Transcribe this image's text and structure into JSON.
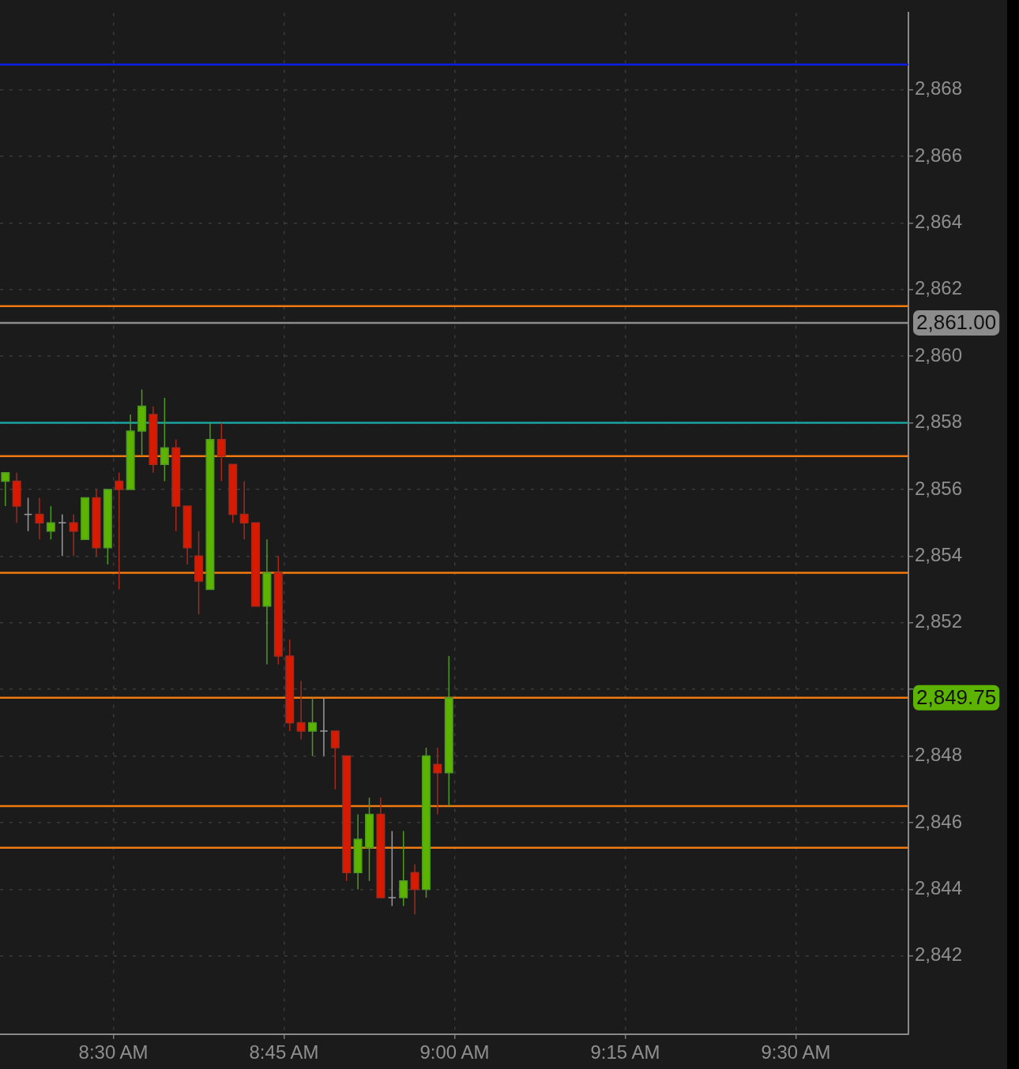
{
  "chart_data": {
    "type": "candlestick",
    "x": [
      8.34167,
      8.35833,
      8.375,
      8.39167,
      8.40833,
      8.425,
      8.44167,
      8.45833,
      8.475,
      8.49167,
      8.50833,
      8.525,
      8.54167,
      8.55833,
      8.575,
      8.59167,
      8.60833,
      8.625,
      8.64167,
      8.65833,
      8.675,
      8.69167,
      8.70833,
      8.725,
      8.74167,
      8.75833,
      8.775,
      8.79167,
      8.80833,
      8.825,
      8.84167,
      8.85833,
      8.875,
      8.89167,
      8.90833,
      8.925,
      8.94167,
      8.95833,
      8.975,
      8.99167
    ],
    "ohlc": [
      [
        2856.25,
        2856.5,
        2855.5,
        2856.5
      ],
      [
        2856.25,
        2856.5,
        2855,
        2855.5
      ],
      [
        2855.25,
        2855.75,
        2854.75,
        2855.25
      ],
      [
        2855.25,
        2855.75,
        2854.5,
        2855
      ],
      [
        2854.75,
        2855.5,
        2854.5,
        2855
      ],
      [
        2855,
        2855.25,
        2854,
        2855
      ],
      [
        2855,
        2855.25,
        2854,
        2854.75
      ],
      [
        2854.5,
        2855.75,
        2854.5,
        2855.75
      ],
      [
        2855.75,
        2856,
        2854,
        2854.25
      ],
      [
        2854.25,
        2856,
        2853.75,
        2856
      ],
      [
        2856.25,
        2856.5,
        2853,
        2856
      ],
      [
        2856,
        2858.25,
        2856,
        2857.75
      ],
      [
        2857.75,
        2859,
        2857,
        2858.5
      ],
      [
        2858.25,
        2858.5,
        2856.5,
        2856.75
      ],
      [
        2856.75,
        2858.75,
        2856.25,
        2857.25
      ],
      [
        2857.25,
        2857.5,
        2854.75,
        2855.5
      ],
      [
        2855.5,
        2855.5,
        2853.75,
        2854.25
      ],
      [
        2854,
        2854.75,
        2852.25,
        2853.25
      ],
      [
        2853,
        2858,
        2853,
        2857.5
      ],
      [
        2857.5,
        2858,
        2856.25,
        2857
      ],
      [
        2856.75,
        2856.75,
        2855,
        2855.25
      ],
      [
        2855.25,
        2856.25,
        2854.5,
        2855
      ],
      [
        2855,
        2855,
        2852.5,
        2852.5
      ],
      [
        2852.5,
        2854.5,
        2850.75,
        2853.5
      ],
      [
        2853.5,
        2854,
        2850.75,
        2851
      ],
      [
        2851,
        2851.5,
        2848.75,
        2849
      ],
      [
        2849,
        2850.25,
        2848.5,
        2848.75
      ],
      [
        2848.75,
        2849.75,
        2848,
        2849
      ],
      [
        2848.75,
        2849.75,
        2848,
        2848.75
      ],
      [
        2848.75,
        2848.75,
        2847,
        2848.25
      ],
      [
        2848,
        2848,
        2844.25,
        2844.5
      ],
      [
        2844.5,
        2846.25,
        2844,
        2845.5
      ],
      [
        2845.25,
        2846.75,
        2844.25,
        2846.25
      ],
      [
        2846.25,
        2846.75,
        2843.75,
        2843.75
      ],
      [
        2843.75,
        2845.75,
        2843.5,
        2843.75
      ],
      [
        2843.75,
        2845.75,
        2843.5,
        2844.25
      ],
      [
        2844.5,
        2844.75,
        2843.25,
        2844
      ],
      [
        2844,
        2848.25,
        2843.75,
        2848
      ],
      [
        2847.75,
        2848.25,
        2846.25,
        2847.5
      ],
      [
        2847.5,
        2851,
        2846.5,
        2849.75
      ]
    ],
    "xlim": [
      8.3338,
      9.665
    ],
    "xticks": [
      {
        "value": 8.5,
        "label": "8:30 AM"
      },
      {
        "value": 8.75,
        "label": "8:45 AM"
      },
      {
        "value": 9,
        "label": "9:00 AM"
      },
      {
        "value": 9.25,
        "label": "9:15 AM"
      },
      {
        "value": 9.5,
        "label": "9:30 AM"
      }
    ],
    "ylim": [
      2839.65,
      2870.3
    ],
    "yticks": [
      {
        "value": 2842,
        "label": "2,842"
      },
      {
        "value": 2844,
        "label": "2,844"
      },
      {
        "value": 2846,
        "label": "2,846"
      },
      {
        "value": 2848,
        "label": "2,848"
      },
      {
        "value": 2850,
        "label": null
      },
      {
        "value": 2852,
        "label": "2,852"
      },
      {
        "value": 2854,
        "label": "2,854"
      },
      {
        "value": 2856,
        "label": "2,856"
      },
      {
        "value": 2858,
        "label": "2,858"
      },
      {
        "value": 2860,
        "label": "2,860"
      },
      {
        "value": 2862,
        "label": "2,862"
      },
      {
        "value": 2864,
        "label": "2,864"
      },
      {
        "value": 2866,
        "label": "2,866"
      },
      {
        "value": 2868,
        "label": "2,868"
      }
    ],
    "grid": true,
    "ref_lines": [
      {
        "axis": "y",
        "value": 2868.75,
        "color": "#0a1ee6"
      },
      {
        "axis": "y",
        "value": 2861.5,
        "color": "#f07a10"
      },
      {
        "axis": "y",
        "value": 2861,
        "label": "2,861.00",
        "color": "#8c8c8c"
      },
      {
        "axis": "y",
        "value": 2858,
        "color": "#1aa3a3"
      },
      {
        "axis": "y",
        "value": 2857,
        "color": "#f07a10"
      },
      {
        "axis": "y",
        "value": 2853.5,
        "color": "#f07a10"
      },
      {
        "axis": "y",
        "value": 2849.75,
        "color": "#f07a10"
      },
      {
        "axis": "y",
        "value": 2846.5,
        "color": "#f07a10"
      },
      {
        "axis": "y",
        "value": 2845.25,
        "color": "#f07a10"
      }
    ],
    "annotations": [
      "2,849.75"
    ]
  }
}
